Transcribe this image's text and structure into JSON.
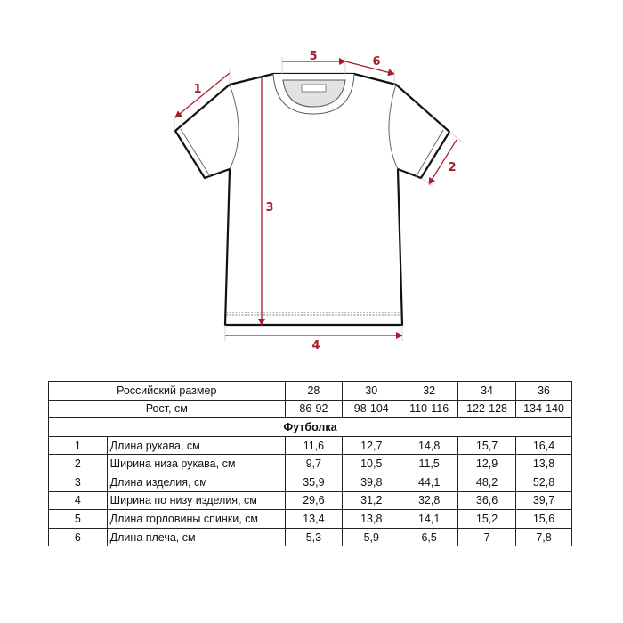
{
  "diagram": {
    "accent_color": "#a81c2c",
    "measure_labels": [
      "1",
      "2",
      "3",
      "4",
      "5",
      "6"
    ]
  },
  "table": {
    "header_size_label": "Российский размер",
    "sizes": [
      "28",
      "30",
      "32",
      "34",
      "36"
    ],
    "header_height_label": "Рост, см",
    "heights": [
      "86-92",
      "98-104",
      "110-116",
      "122-128",
      "134-140"
    ],
    "section": "Футболка",
    "rows": [
      {
        "num": "1",
        "name": "Длина рукава, см",
        "values": [
          "11,6",
          "12,7",
          "14,8",
          "15,7",
          "16,4"
        ]
      },
      {
        "num": "2",
        "name": "Ширина низа рукава, см",
        "values": [
          "9,7",
          "10,5",
          "11,5",
          "12,9",
          "13,8"
        ]
      },
      {
        "num": "3",
        "name": "Длина изделия, см",
        "values": [
          "35,9",
          "39,8",
          "44,1",
          "48,2",
          "52,8"
        ]
      },
      {
        "num": "4",
        "name": "Ширина по низу изделия, см",
        "values": [
          "29,6",
          "31,2",
          "32,8",
          "36,6",
          "39,7"
        ]
      },
      {
        "num": "5",
        "name": "Длина горловины спинки, см",
        "values": [
          "13,4",
          "13,8",
          "14,1",
          "15,2",
          "15,6"
        ]
      },
      {
        "num": "6",
        "name": "Длина плеча, см",
        "values": [
          "5,3",
          "5,9",
          "6,5",
          "7",
          "7,8"
        ]
      }
    ]
  }
}
